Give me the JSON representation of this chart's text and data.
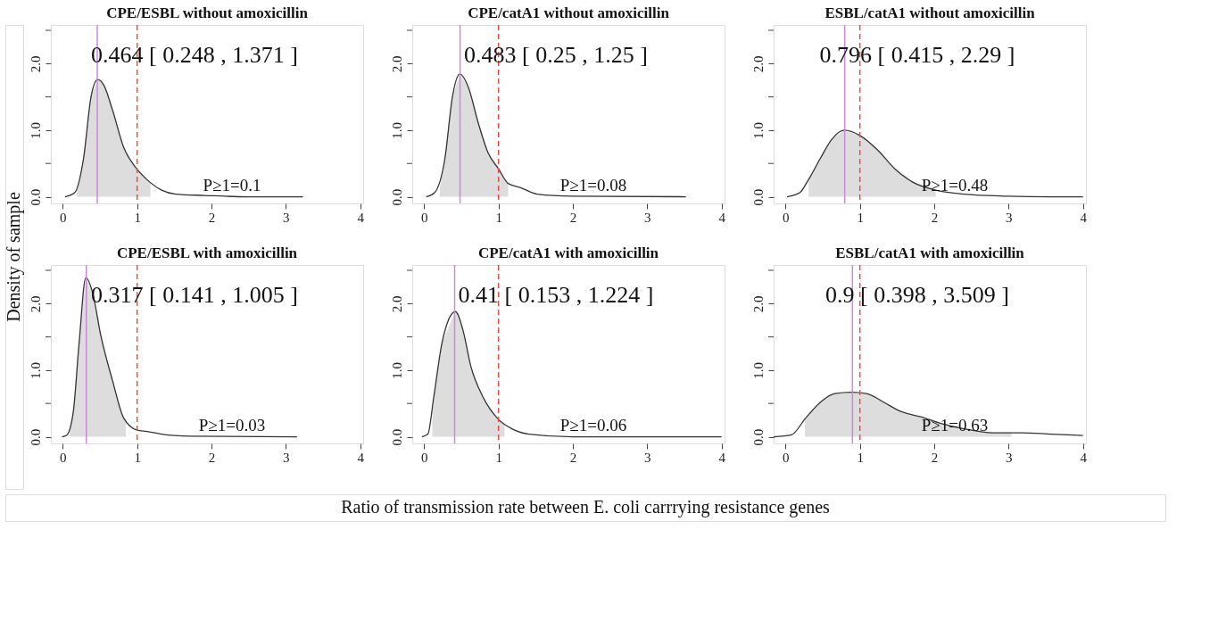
{
  "chart_data": [
    {
      "type": "line",
      "title": "CPE/ESBL without amoxicillin",
      "ylabel": "Density of sample",
      "xlim": [
        -0.16,
        4.04
      ],
      "xticks": [
        0,
        1,
        2,
        3,
        4
      ],
      "ylim": [
        -0.1,
        2.58
      ],
      "yticks": [
        {
          "value": 0,
          "label": "0.0"
        },
        {
          "value": 0.5,
          "label": null
        },
        {
          "value": 1,
          "label": "1.0"
        },
        {
          "value": 1.5,
          "label": null
        },
        {
          "value": 2,
          "label": "2.0"
        },
        {
          "value": 2.5,
          "label": null
        }
      ],
      "grid": false,
      "legend": false,
      "series": [
        {
          "type": "area",
          "color": "#dddddd",
          "x": [
            0.19,
            0.28,
            0.38,
            0.47,
            0.55,
            0.67,
            0.82,
            0.98,
            1.13,
            1.18
          ],
          "values": [
            0.1,
            0.58,
            1.5,
            1.76,
            1.68,
            1.3,
            0.74,
            0.44,
            0.26,
            0.21
          ]
        },
        {
          "type": "line",
          "color": "#333333",
          "x": [
            0.03,
            0.16,
            0.28,
            0.38,
            0.47,
            0.55,
            0.67,
            0.82,
            0.98,
            1.13,
            1.33,
            1.52,
            1.91,
            2.49,
            3.23
          ],
          "values": [
            0,
            0.06,
            0.58,
            1.5,
            1.76,
            1.68,
            1.3,
            0.74,
            0.44,
            0.26,
            0.1,
            0.04,
            0.02,
            0,
            0
          ]
        }
      ],
      "ref_lines": [
        {
          "axis": "x",
          "value": 0.464,
          "color": "#cc88dd",
          "line_style": "solid"
        },
        {
          "axis": "x",
          "value": 1,
          "color": "#ff4444",
          "line_style": "dashed"
        }
      ],
      "annotations": [
        "0.464 [ 0.248 , 1.371 ]",
        "P≥1=0.1"
      ]
    },
    {
      "type": "line",
      "title": "CPE/catA1 without amoxicillin",
      "xlim": [
        -0.16,
        4.04
      ],
      "xticks": [
        0,
        1,
        2,
        3,
        4
      ],
      "ylim": [
        -0.1,
        2.58
      ],
      "yticks": [
        {
          "value": 0,
          "label": "0.0"
        },
        {
          "value": 0.5,
          "label": null
        },
        {
          "value": 1,
          "label": "1.0"
        },
        {
          "value": 1.5,
          "label": null
        },
        {
          "value": 2,
          "label": "2.0"
        },
        {
          "value": 2.5,
          "label": null
        }
      ],
      "grid": false,
      "legend": false,
      "series": [
        {
          "type": "area",
          "color": "#dddddd",
          "x": [
            0.21,
            0.28,
            0.38,
            0.48,
            0.59,
            0.73,
            0.86,
            1.0,
            1.13
          ],
          "values": [
            0.12,
            0.58,
            1.5,
            1.84,
            1.66,
            1.1,
            0.66,
            0.42,
            0.2
          ]
        },
        {
          "type": "line",
          "color": "#333333",
          "x": [
            0.03,
            0.14,
            0.28,
            0.38,
            0.48,
            0.59,
            0.73,
            0.86,
            1.0,
            1.13,
            1.29,
            1.52,
            1.99,
            3.52
          ],
          "values": [
            0,
            0.06,
            0.58,
            1.5,
            1.84,
            1.66,
            1.1,
            0.66,
            0.42,
            0.2,
            0.14,
            0.04,
            0.01,
            0
          ]
        }
      ],
      "ref_lines": [
        {
          "axis": "x",
          "value": 0.483,
          "color": "#cc88dd",
          "line_style": "solid"
        },
        {
          "axis": "x",
          "value": 1,
          "color": "#ff4444",
          "line_style": "dashed"
        }
      ],
      "annotations": [
        "0.483 [ 0.25 , 1.25 ]",
        "P≥1=0.08"
      ]
    },
    {
      "type": "line",
      "title": "ESBL/catA1 without amoxicillin",
      "xlim": [
        -0.16,
        4.04
      ],
      "xticks": [
        0,
        1,
        2,
        3,
        4
      ],
      "ylim": [
        -0.1,
        2.58
      ],
      "yticks": [
        {
          "value": 0,
          "label": "0.0"
        },
        {
          "value": 0.5,
          "label": null
        },
        {
          "value": 1,
          "label": "1.0"
        },
        {
          "value": 1.5,
          "label": null
        },
        {
          "value": 2,
          "label": "2.0"
        },
        {
          "value": 2.5,
          "label": null
        }
      ],
      "grid": false,
      "legend": false,
      "series": [
        {
          "type": "area",
          "color": "#dddddd",
          "x": [
            0.31,
            0.47,
            0.62,
            0.79,
            1.0,
            1.24,
            1.47,
            1.71,
            2.02
          ],
          "values": [
            0.26,
            0.58,
            0.86,
            1.0,
            0.92,
            0.7,
            0.42,
            0.22,
            0.1
          ]
        },
        {
          "type": "line",
          "color": "#333333",
          "x": [
            0.02,
            0.19,
            0.31,
            0.47,
            0.62,
            0.79,
            1.0,
            1.24,
            1.47,
            1.71,
            2.02,
            2.4,
            2.98,
            3.57,
            4.0
          ],
          "values": [
            0,
            0.06,
            0.26,
            0.58,
            0.86,
            1.0,
            0.92,
            0.7,
            0.42,
            0.22,
            0.1,
            0.04,
            0.01,
            0,
            0
          ]
        }
      ],
      "ref_lines": [
        {
          "axis": "x",
          "value": 0.796,
          "color": "#cc88dd",
          "line_style": "solid"
        },
        {
          "axis": "x",
          "value": 1,
          "color": "#ff4444",
          "line_style": "dashed"
        }
      ],
      "annotations": [
        "0.796 [ 0.415 , 2.29 ]",
        "P≥1=0.48"
      ]
    },
    {
      "type": "line",
      "title": "CPE/ESBL with amoxicillin",
      "xlim": [
        -0.16,
        4.04
      ],
      "xticks": [
        0,
        1,
        2,
        3,
        4
      ],
      "ylim": [
        -0.1,
        2.58
      ],
      "yticks": [
        {
          "value": 0,
          "label": "0.0"
        },
        {
          "value": 0.5,
          "label": null
        },
        {
          "value": 1,
          "label": "1.0"
        },
        {
          "value": 1.5,
          "label": null
        },
        {
          "value": 2,
          "label": "2.0"
        },
        {
          "value": 2.5,
          "label": null
        }
      ],
      "grid": false,
      "legend": false,
      "series": [
        {
          "type": "area",
          "color": "#dddddd",
          "x": [
            0.09,
            0.14,
            0.22,
            0.31,
            0.4,
            0.51,
            0.67,
            0.82,
            0.85
          ],
          "values": [
            0.08,
            0.36,
            1.41,
            2.39,
            2.17,
            1.53,
            0.84,
            0.28,
            0.22
          ]
        },
        {
          "type": "line",
          "color": "#333333",
          "x": [
            -0.01,
            0.05,
            0.14,
            0.22,
            0.31,
            0.4,
            0.51,
            0.67,
            0.82,
            1.0,
            1.13,
            1.33,
            1.71,
            3.15
          ],
          "values": [
            0,
            0.02,
            0.36,
            1.41,
            2.39,
            2.17,
            1.53,
            0.84,
            0.28,
            0.1,
            0.08,
            0.04,
            0.01,
            0
          ]
        }
      ],
      "ref_lines": [
        {
          "axis": "x",
          "value": 0.317,
          "color": "#cc88dd",
          "line_style": "solid"
        },
        {
          "axis": "x",
          "value": 1,
          "color": "#ff4444",
          "line_style": "dashed"
        }
      ],
      "annotations": [
        "0.317 [ 0.141 , 1.005 ]",
        "P≥1=0.03"
      ]
    },
    {
      "type": "line",
      "title": "CPE/catA1 with amoxicillin",
      "xlabel": "Ratio of transmission rate between E. coli carrrying resistance genes",
      "xlim": [
        -0.16,
        4.04
      ],
      "xticks": [
        0,
        1,
        2,
        3,
        4
      ],
      "ylim": [
        -0.1,
        2.58
      ],
      "yticks": [
        {
          "value": 0,
          "label": "0.0"
        },
        {
          "value": 0.5,
          "label": null
        },
        {
          "value": 1,
          "label": "1.0"
        },
        {
          "value": 1.5,
          "label": null
        },
        {
          "value": 2,
          "label": "2.0"
        },
        {
          "value": 2.5,
          "label": null
        }
      ],
      "grid": false,
      "legend": false,
      "series": [
        {
          "type": "area",
          "color": "#dddddd",
          "x": [
            0.11,
            0.13,
            0.24,
            0.42,
            0.52,
            0.63,
            0.79,
            1.0,
            1.08
          ],
          "values": [
            0.3,
            0.6,
            1.41,
            1.88,
            1.61,
            1.05,
            0.6,
            0.26,
            0.2
          ]
        },
        {
          "type": "line",
          "color": "#333333",
          "x": [
            -0.03,
            0.05,
            0.13,
            0.24,
            0.42,
            0.52,
            0.63,
            0.79,
            1.0,
            1.18,
            1.41,
            2.0,
            4.0
          ],
          "values": [
            0,
            0.04,
            0.6,
            1.41,
            1.88,
            1.61,
            1.05,
            0.6,
            0.26,
            0.12,
            0.04,
            0,
            0
          ]
        }
      ],
      "ref_lines": [
        {
          "axis": "x",
          "value": 0.41,
          "color": "#cc88dd",
          "line_style": "solid"
        },
        {
          "axis": "x",
          "value": 1,
          "color": "#ff4444",
          "line_style": "dashed"
        }
      ],
      "annotations": [
        "0.41 [ 0.153 , 1.224 ]",
        "P≥1=0.06"
      ]
    },
    {
      "type": "line",
      "title": "ESBL/catA1 with amoxicillin",
      "xlim": [
        -0.16,
        4.04
      ],
      "xticks": [
        0,
        1,
        2,
        3,
        4
      ],
      "ylim": [
        -0.1,
        2.58
      ],
      "yticks": [
        {
          "value": 0,
          "label": "0.0"
        },
        {
          "value": 0.5,
          "label": null
        },
        {
          "value": 1,
          "label": "1.0"
        },
        {
          "value": 1.5,
          "label": null
        },
        {
          "value": 2,
          "label": "2.0"
        },
        {
          "value": 2.5,
          "label": null
        }
      ],
      "grid": false,
      "legend": false,
      "series": [
        {
          "type": "area",
          "color": "#dddddd",
          "x": [
            0.26,
            0.27,
            0.47,
            0.66,
            0.89,
            1.09,
            1.32,
            1.55,
            1.82,
            2.09,
            2.4,
            2.79,
            3.04
          ],
          "values": [
            0.26,
            0.28,
            0.52,
            0.65,
            0.67,
            0.65,
            0.52,
            0.38,
            0.3,
            0.2,
            0.12,
            0.06,
            0.06
          ]
        },
        {
          "type": "line",
          "color": "#333333",
          "x": [
            -0.16,
            0.08,
            0.27,
            0.47,
            0.66,
            0.89,
            1.09,
            1.32,
            1.55,
            1.82,
            2.09,
            2.4,
            2.79,
            3.18,
            3.57,
            4.0
          ],
          "values": [
            0,
            0.03,
            0.28,
            0.52,
            0.65,
            0.67,
            0.65,
            0.52,
            0.38,
            0.3,
            0.2,
            0.12,
            0.06,
            0.06,
            0.04,
            0.02
          ]
        }
      ],
      "ref_lines": [
        {
          "axis": "x",
          "value": 0.9,
          "color": "#cc88dd",
          "line_style": "solid"
        },
        {
          "axis": "x",
          "value": 1,
          "color": "#ff4444",
          "line_style": "dashed"
        }
      ],
      "annotations": [
        "0.9 [ 0.398 , 3.509 ]",
        "P≥1=0.63"
      ]
    }
  ]
}
